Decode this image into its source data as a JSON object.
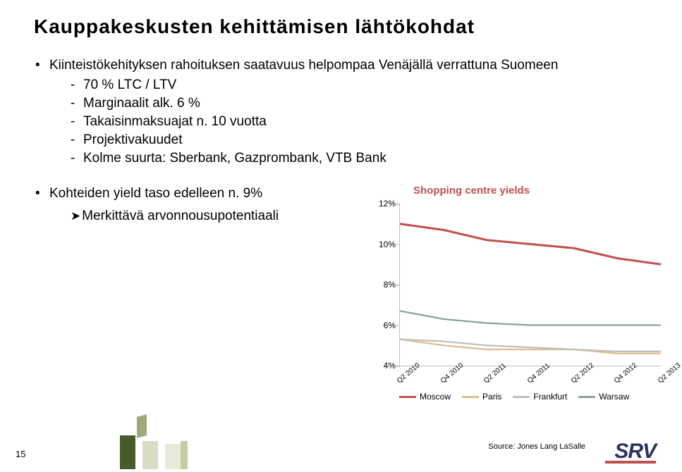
{
  "title": "Kauppakeskusten kehittämisen lähtökohdat",
  "bullet1": "Kiinteistökehityksen rahoituksen saatavuus helpompaa Venäjällä verrattuna Suomeen",
  "sub_items": [
    "70 % LTC / LTV",
    "Marginaalit alk. 6 %",
    "Takaisinmaksuajat n. 10 vuotta",
    "Projektivakuudet",
    "Kolme suurta: Sberbank, Gazprombank, VTB Bank"
  ],
  "bullet2": "Kohteiden yield taso edelleen n. 9%",
  "arrow_text": "Merkittävä arvonnousupotentiaali",
  "chart": {
    "title": "Shopping centre yields",
    "title_color": "#c0504d",
    "ylim": [
      4,
      12
    ],
    "yticks": [
      4,
      6,
      8,
      10,
      12
    ],
    "ytick_labels": [
      "4%",
      "6%",
      "8%",
      "10%",
      "12%"
    ],
    "x_labels": [
      "Q2 2010",
      "Q4 2010",
      "Q2 2011",
      "Q4 2011",
      "Q2 2012",
      "Q4 2012",
      "Q2 2013"
    ],
    "grid_color": "#bfbfbf",
    "series": [
      {
        "name": "Moscow",
        "color": "#c0504d",
        "width": 3,
        "values": [
          11.0,
          10.7,
          10.2,
          10.0,
          9.8,
          9.3,
          9.0
        ]
      },
      {
        "name": "Paris",
        "color": "#d9c089",
        "width": 2.2,
        "values": [
          5.3,
          5.0,
          4.8,
          4.8,
          4.8,
          4.6,
          4.6
        ]
      },
      {
        "name": "Frankfurt",
        "color": "#bfbfbf",
        "width": 2.2,
        "values": [
          5.3,
          5.2,
          5.0,
          4.9,
          4.8,
          4.7,
          4.7
        ]
      },
      {
        "name": "Warsaw",
        "color": "#8aa0a0",
        "width": 2.2,
        "values": [
          6.7,
          6.3,
          6.1,
          6.0,
          6.0,
          6.0,
          6.0
        ]
      }
    ]
  },
  "source": "Source: Jones Lang LaSalle",
  "page_number": "15",
  "logo_text": "SRV",
  "logo_color": "#2c3260",
  "logo_bar_color": "#c0504d"
}
